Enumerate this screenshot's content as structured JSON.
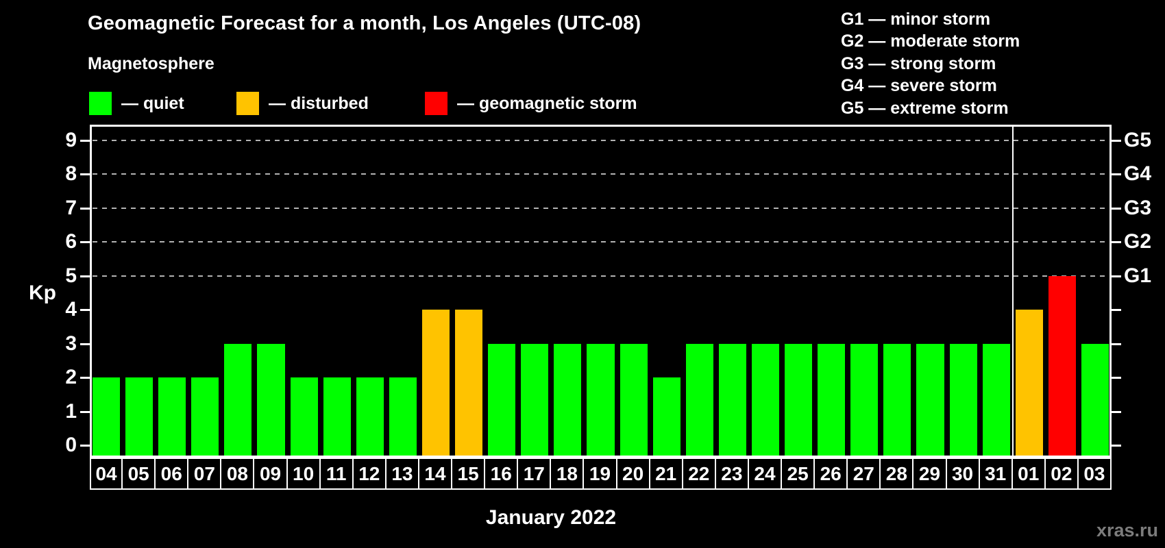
{
  "legend": {
    "title": "Magnetosphere",
    "items": [
      {
        "name": "quiet",
        "color": "#00ff00",
        "label": "— quiet"
      },
      {
        "name": "disturbed",
        "color": "#ffc300",
        "label": "— disturbed"
      },
      {
        "name": "storm",
        "color": "#ff0000",
        "label": "— geomagnetic storm"
      }
    ]
  },
  "storm_scale": {
    "lines": [
      "G1 — minor storm",
      "G2 — moderate storm",
      "G3 — strong storm",
      "G4 — severe storm",
      "G5 — extreme storm"
    ]
  },
  "watermark": "xras.ru",
  "chart_data": {
    "type": "bar",
    "title": "Geomagnetic Forecast for a month, Los Angeles (UTC-08)",
    "xlabel": "January 2022",
    "ylabel": "Kp",
    "ylim": [
      0,
      9
    ],
    "yticks": [
      0,
      1,
      2,
      3,
      4,
      5,
      6,
      7,
      8,
      9
    ],
    "grid_levels": [
      5,
      6,
      7,
      8,
      9
    ],
    "right_axis_labels": [
      {
        "kp": 5,
        "label": "G1"
      },
      {
        "kp": 6,
        "label": "G2"
      },
      {
        "kp": 7,
        "label": "G3"
      },
      {
        "kp": 8,
        "label": "G4"
      },
      {
        "kp": 9,
        "label": "G5"
      }
    ],
    "month_boundary_index": 28,
    "categories": [
      "04",
      "05",
      "06",
      "07",
      "08",
      "09",
      "10",
      "11",
      "12",
      "13",
      "14",
      "15",
      "16",
      "17",
      "18",
      "19",
      "20",
      "21",
      "22",
      "23",
      "24",
      "25",
      "26",
      "27",
      "28",
      "29",
      "30",
      "31",
      "01",
      "02",
      "03"
    ],
    "values": [
      2,
      2,
      2,
      2,
      3,
      3,
      2,
      2,
      2,
      2,
      4,
      4,
      3,
      3,
      3,
      3,
      3,
      2,
      3,
      3,
      3,
      3,
      3,
      3,
      3,
      3,
      3,
      3,
      4,
      5,
      3
    ],
    "statuses": [
      "quiet",
      "quiet",
      "quiet",
      "quiet",
      "quiet",
      "quiet",
      "quiet",
      "quiet",
      "quiet",
      "quiet",
      "disturbed",
      "disturbed",
      "quiet",
      "quiet",
      "quiet",
      "quiet",
      "quiet",
      "quiet",
      "quiet",
      "quiet",
      "quiet",
      "quiet",
      "quiet",
      "quiet",
      "quiet",
      "quiet",
      "quiet",
      "quiet",
      "disturbed",
      "storm",
      "quiet"
    ],
    "status_colors": {
      "quiet": "#00ff00",
      "disturbed": "#ffc300",
      "storm": "#ff0000"
    },
    "legend_position": "top-left",
    "grid": "dashed horizontal at G-levels only"
  }
}
